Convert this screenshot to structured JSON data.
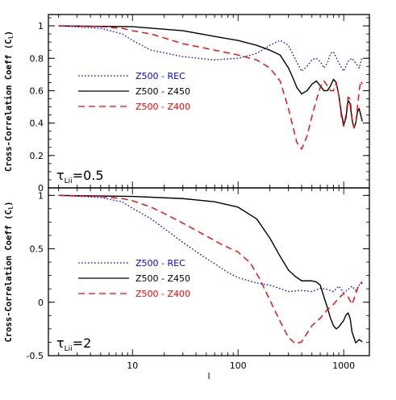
{
  "chart_data": [
    {
      "type": "line",
      "annotation": "τ",
      "annotation_sub": "Lii",
      "annotation_value": "=0.5",
      "ylabel": "Cross-Correlation Coeff (C",
      "ylabel_sub": "l",
      "ylabel_end": ")",
      "xlabel": "",
      "xscale": "log",
      "xlim": [
        1.6,
        1750
      ],
      "ylim": [
        0,
        1.07
      ],
      "yticks": [
        0,
        0.2,
        0.4,
        0.6,
        0.8,
        1
      ],
      "ytick_labels": [
        "0",
        "0.2",
        "0.4",
        "0.6",
        "0.8",
        "1"
      ],
      "legend_position": "left-center",
      "series": [
        {
          "name": "Z500 - REC",
          "color": "#0000ff",
          "style": "dotted",
          "x": [
            2,
            5,
            8,
            10,
            15,
            30,
            60,
            100,
            150,
            200,
            250,
            300,
            350,
            400,
            450,
            500,
            550,
            600,
            650,
            700,
            750,
            800,
            900,
            1000,
            1100,
            1200,
            1300,
            1400,
            1500
          ],
          "y": [
            1.0,
            0.985,
            0.95,
            0.91,
            0.85,
            0.81,
            0.79,
            0.8,
            0.83,
            0.88,
            0.91,
            0.88,
            0.79,
            0.72,
            0.75,
            0.79,
            0.8,
            0.78,
            0.74,
            0.77,
            0.83,
            0.84,
            0.77,
            0.72,
            0.78,
            0.8,
            0.77,
            0.74,
            0.81
          ]
        },
        {
          "name": "Z500 - Z450",
          "color": "#000000",
          "style": "solid",
          "x": [
            2,
            10,
            30,
            60,
            100,
            150,
            200,
            250,
            300,
            330,
            360,
            400,
            450,
            500,
            550,
            600,
            650,
            700,
            750,
            800,
            850,
            900,
            950,
            1000,
            1050,
            1100,
            1150,
            1200,
            1250,
            1300,
            1350,
            1400,
            1450,
            1500
          ],
          "y": [
            1.0,
            0.995,
            0.97,
            0.935,
            0.91,
            0.88,
            0.85,
            0.82,
            0.74,
            0.68,
            0.62,
            0.58,
            0.6,
            0.64,
            0.66,
            0.63,
            0.6,
            0.6,
            0.63,
            0.67,
            0.65,
            0.57,
            0.46,
            0.39,
            0.43,
            0.54,
            0.52,
            0.42,
            0.37,
            0.4,
            0.47,
            0.49,
            0.45,
            0.41
          ]
        },
        {
          "name": "Z500 - Z400",
          "color": "#ff0000",
          "style": "dashed",
          "x": [
            2,
            5,
            8,
            10,
            15,
            30,
            60,
            100,
            150,
            200,
            250,
            300,
            330,
            360,
            400,
            450,
            500,
            550,
            600,
            650,
            700,
            750,
            800,
            850,
            900,
            950,
            1000,
            1050,
            1100,
            1150,
            1200,
            1250,
            1300,
            1350,
            1400,
            1450,
            1500
          ],
          "y": [
            1.0,
            0.995,
            0.985,
            0.97,
            0.95,
            0.89,
            0.85,
            0.82,
            0.79,
            0.74,
            0.66,
            0.49,
            0.38,
            0.28,
            0.24,
            0.32,
            0.44,
            0.54,
            0.62,
            0.66,
            0.63,
            0.6,
            0.6,
            0.65,
            0.57,
            0.44,
            0.38,
            0.45,
            0.56,
            0.55,
            0.43,
            0.37,
            0.4,
            0.5,
            0.6,
            0.66,
            0.64
          ]
        }
      ]
    },
    {
      "type": "line",
      "annotation": "τ",
      "annotation_sub": "Lii",
      "annotation_value": "=2",
      "ylabel": "Cross-Correlation Coeff (C",
      "ylabel_sub": "l",
      "ylabel_end": ")",
      "xlabel": "l",
      "xscale": "log",
      "xlim": [
        1.6,
        1750
      ],
      "ylim": [
        -0.5,
        1.07
      ],
      "xticks": [
        10,
        100,
        1000
      ],
      "xtick_labels": [
        "10",
        "100",
        "1000"
      ],
      "yticks": [
        -0.5,
        0,
        0.5,
        1
      ],
      "ytick_labels": [
        "-0.5",
        "0",
        "0.5",
        "1"
      ],
      "legend_position": "left-center",
      "series": [
        {
          "name": "Z500 - REC",
          "color": "#0000ff",
          "style": "dotted",
          "x": [
            2,
            5,
            8,
            10,
            15,
            20,
            30,
            45,
            60,
            80,
            100,
            150,
            200,
            300,
            400,
            500,
            600,
            700,
            800,
            900,
            1000,
            1100,
            1200,
            1300,
            1400,
            1500
          ],
          "y": [
            1.0,
            0.98,
            0.94,
            0.88,
            0.78,
            0.69,
            0.56,
            0.44,
            0.36,
            0.28,
            0.23,
            0.18,
            0.16,
            0.1,
            0.11,
            0.1,
            0.13,
            0.12,
            0.1,
            0.15,
            0.09,
            0.12,
            0.15,
            0.11,
            0.16,
            0.18
          ]
        },
        {
          "name": "Z500 - Z450",
          "color": "#000000",
          "style": "solid",
          "x": [
            2,
            10,
            30,
            60,
            100,
            150,
            200,
            250,
            300,
            350,
            400,
            500,
            550,
            600,
            650,
            700,
            750,
            800,
            850,
            900,
            1000,
            1050,
            1100,
            1150,
            1200,
            1300,
            1400,
            1500
          ],
          "y": [
            1.0,
            0.99,
            0.97,
            0.94,
            0.89,
            0.78,
            0.6,
            0.43,
            0.3,
            0.24,
            0.2,
            0.2,
            0.19,
            0.16,
            0.05,
            -0.05,
            -0.15,
            -0.22,
            -0.25,
            -0.23,
            -0.17,
            -0.12,
            -0.1,
            -0.15,
            -0.28,
            -0.38,
            -0.35,
            -0.37
          ]
        },
        {
          "name": "Z500 - Z400",
          "color": "#ff0000",
          "style": "dashed",
          "x": [
            2,
            5,
            8,
            10,
            15,
            20,
            30,
            50,
            70,
            100,
            130,
            160,
            200,
            250,
            300,
            350,
            400,
            450,
            500,
            600,
            700,
            800,
            900,
            1000,
            1100,
            1200,
            1300,
            1400,
            1500
          ],
          "y": [
            1.0,
            0.99,
            0.97,
            0.95,
            0.89,
            0.83,
            0.74,
            0.62,
            0.54,
            0.47,
            0.37,
            0.22,
            0.02,
            -0.18,
            -0.33,
            -0.39,
            -0.37,
            -0.29,
            -0.22,
            -0.15,
            -0.07,
            -0.02,
            0.04,
            0.08,
            0.05,
            -0.02,
            0.08,
            0.17,
            0.19
          ]
        }
      ]
    }
  ]
}
